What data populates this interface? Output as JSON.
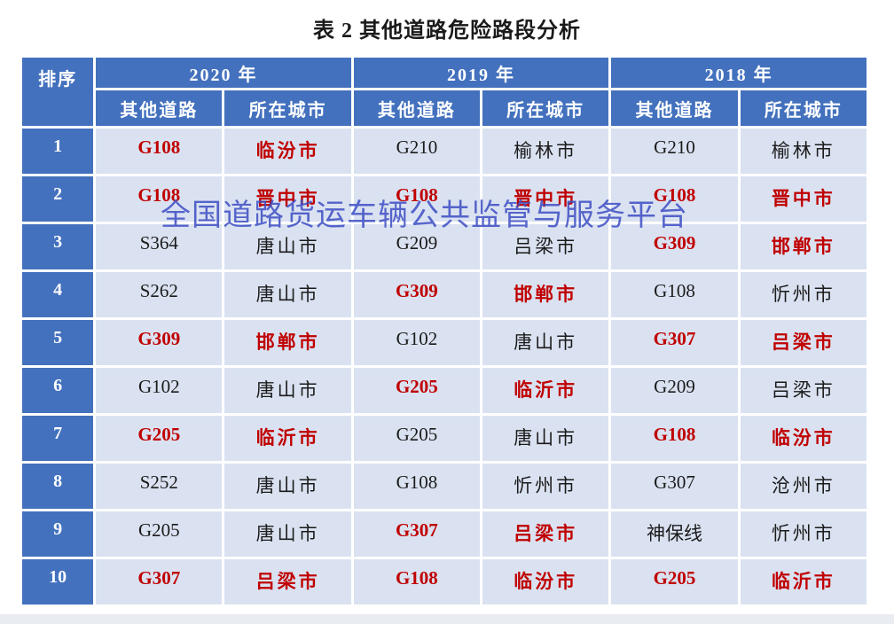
{
  "title": "表 2 其他道路危险路段分析",
  "watermark": "全国道路货运车辆公共监管与服务平台",
  "colors": {
    "header_bg": "#4371BE",
    "cell_bg": "#DAE2F1",
    "red_text": "#C00000",
    "black_text": "#1b1b1b",
    "watermark_blue": "#3D4EC4",
    "header_text": "#FFFFFF"
  },
  "table": {
    "rank_header": "排序",
    "year_groups": [
      {
        "year": "2020 年",
        "subcols": [
          "其他道路",
          "所在城市"
        ]
      },
      {
        "year": "2019 年",
        "subcols": [
          "其他道路",
          "所在城市"
        ]
      },
      {
        "year": "2018 年",
        "subcols": [
          "其他道路",
          "所在城市"
        ]
      }
    ],
    "rows": [
      {
        "rank": "1",
        "cells": [
          {
            "t": "G108",
            "red": true
          },
          {
            "t": "临汾市",
            "red": true
          },
          {
            "t": "G210",
            "red": false
          },
          {
            "t": "榆林市",
            "red": false
          },
          {
            "t": "G210",
            "red": false
          },
          {
            "t": "榆林市",
            "red": false
          }
        ]
      },
      {
        "rank": "2",
        "cells": [
          {
            "t": "G108",
            "red": true
          },
          {
            "t": "晋中市",
            "red": true
          },
          {
            "t": "G108",
            "red": true
          },
          {
            "t": "晋中市",
            "red": true
          },
          {
            "t": "G108",
            "red": true
          },
          {
            "t": "晋中市",
            "red": true
          }
        ]
      },
      {
        "rank": "3",
        "cells": [
          {
            "t": "S364",
            "red": false
          },
          {
            "t": "唐山市",
            "red": false
          },
          {
            "t": "G209",
            "red": false
          },
          {
            "t": "吕梁市",
            "red": false
          },
          {
            "t": "G309",
            "red": true
          },
          {
            "t": "邯郸市",
            "red": true
          }
        ]
      },
      {
        "rank": "4",
        "cells": [
          {
            "t": "S262",
            "red": false
          },
          {
            "t": "唐山市",
            "red": false
          },
          {
            "t": "G309",
            "red": true
          },
          {
            "t": "邯郸市",
            "red": true
          },
          {
            "t": "G108",
            "red": false
          },
          {
            "t": "忻州市",
            "red": false
          }
        ]
      },
      {
        "rank": "5",
        "cells": [
          {
            "t": "G309",
            "red": true
          },
          {
            "t": "邯郸市",
            "red": true
          },
          {
            "t": "G102",
            "red": false
          },
          {
            "t": "唐山市",
            "red": false
          },
          {
            "t": "G307",
            "red": true
          },
          {
            "t": "吕梁市",
            "red": true
          }
        ]
      },
      {
        "rank": "6",
        "cells": [
          {
            "t": "G102",
            "red": false
          },
          {
            "t": "唐山市",
            "red": false
          },
          {
            "t": "G205",
            "red": true
          },
          {
            "t": "临沂市",
            "red": true
          },
          {
            "t": "G209",
            "red": false
          },
          {
            "t": "吕梁市",
            "red": false
          }
        ]
      },
      {
        "rank": "7",
        "cells": [
          {
            "t": "G205",
            "red": true
          },
          {
            "t": "临沂市",
            "red": true
          },
          {
            "t": "G205",
            "red": false
          },
          {
            "t": "唐山市",
            "red": false
          },
          {
            "t": "G108",
            "red": true
          },
          {
            "t": "临汾市",
            "red": true
          }
        ]
      },
      {
        "rank": "8",
        "cells": [
          {
            "t": "S252",
            "red": false
          },
          {
            "t": "唐山市",
            "red": false
          },
          {
            "t": "G108",
            "red": false
          },
          {
            "t": "忻州市",
            "red": false
          },
          {
            "t": "G307",
            "red": false
          },
          {
            "t": "沧州市",
            "red": false
          }
        ]
      },
      {
        "rank": "9",
        "cells": [
          {
            "t": "G205",
            "red": false
          },
          {
            "t": "唐山市",
            "red": false
          },
          {
            "t": "G307",
            "red": true
          },
          {
            "t": "吕梁市",
            "red": true
          },
          {
            "t": "神保线",
            "red": false
          },
          {
            "t": "忻州市",
            "red": false
          }
        ]
      },
      {
        "rank": "10",
        "cells": [
          {
            "t": "G307",
            "red": true
          },
          {
            "t": "吕梁市",
            "red": true
          },
          {
            "t": "G108",
            "red": true
          },
          {
            "t": "临汾市",
            "red": true
          },
          {
            "t": "G205",
            "red": true
          },
          {
            "t": "临沂市",
            "red": true
          }
        ]
      }
    ]
  }
}
